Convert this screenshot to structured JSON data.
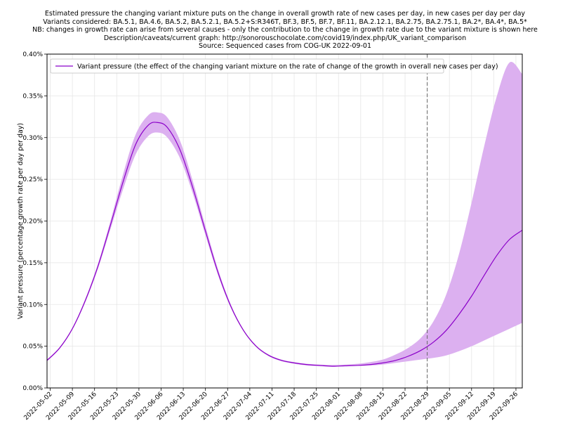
{
  "chart_data": {
    "type": "line",
    "title": [
      "Estimated pressure the changing variant mixture puts on the change in overall growth rate of new cases per day, in new cases per day per day",
      "Variants considered: BA.5.1, BA.4.6, BA.5.2, BA.5.2.1, BA.5.2+S:R346T, BF.3, BF.5, BF.7, BF.11, BA.2.12.1, BA.2.75, BA.2.75.1, BA.2*, BA.4*, BA.5*",
      "NB: changes in growth rate can arise from several causes - only the contribution to the change in growth rate due to the variant mixture is shown here",
      "Description/caveats/current graph: http://sonorouschocolate.com/covid19/index.php/UK_variant_comparison",
      "Source: Sequenced cases from COG-UK 2022-09-01"
    ],
    "xlabel": "",
    "ylabel": "Variant pressure (percentage growth rate per day per day)",
    "x_tick_labels": [
      "2022-05-02",
      "2022-05-09",
      "2022-05-16",
      "2022-05-23",
      "2022-05-30",
      "2022-06-06",
      "2022-06-13",
      "2022-06-20",
      "2022-06-27",
      "2022-07-04",
      "2022-07-11",
      "2022-07-18",
      "2022-07-25",
      "2022-08-01",
      "2022-08-08",
      "2022-08-15",
      "2022-08-22",
      "2022-08-29",
      "2022-09-05",
      "2022-09-12",
      "2022-09-19",
      "2022-09-26"
    ],
    "y_tick_labels": [
      "0.00%",
      "0.05%",
      "0.10%",
      "0.15%",
      "0.20%",
      "0.25%",
      "0.30%",
      "0.35%",
      "0.40%"
    ],
    "xlim": [
      "2022-05-01",
      "2022-09-28"
    ],
    "ylim": [
      0,
      0.4
    ],
    "grid": true,
    "legend_position": "top-left",
    "vline_date": "2022-08-29",
    "series": [
      {
        "name": "Variant pressure (the effect of the changing variant mixture on the rate of change of the growth in overall new cases per day)",
        "color": "#8b00c9",
        "band_color": "#dcb0f0",
        "x": [
          "2022-05-01",
          "2022-05-05",
          "2022-05-09",
          "2022-05-13",
          "2022-05-17",
          "2022-05-21",
          "2022-05-25",
          "2022-05-29",
          "2022-06-02",
          "2022-06-05",
          "2022-06-08",
          "2022-06-12",
          "2022-06-16",
          "2022-06-20",
          "2022-06-24",
          "2022-06-28",
          "2022-07-02",
          "2022-07-06",
          "2022-07-10",
          "2022-07-14",
          "2022-07-18",
          "2022-07-22",
          "2022-07-26",
          "2022-07-30",
          "2022-08-03",
          "2022-08-07",
          "2022-08-11",
          "2022-08-15",
          "2022-08-19",
          "2022-08-23",
          "2022-08-27",
          "2022-08-31",
          "2022-09-04",
          "2022-09-08",
          "2022-09-12",
          "2022-09-16",
          "2022-09-20",
          "2022-09-24",
          "2022-09-28"
        ],
        "y": [
          0.033,
          0.048,
          0.071,
          0.104,
          0.145,
          0.195,
          0.247,
          0.292,
          0.315,
          0.318,
          0.312,
          0.285,
          0.24,
          0.188,
          0.138,
          0.098,
          0.069,
          0.05,
          0.039,
          0.033,
          0.03,
          0.028,
          0.027,
          0.026,
          0.0265,
          0.027,
          0.028,
          0.03,
          0.033,
          0.038,
          0.045,
          0.055,
          0.069,
          0.088,
          0.11,
          0.135,
          0.159,
          0.178,
          0.189
        ],
        "lower": [
          0.032,
          0.047,
          0.07,
          0.102,
          0.142,
          0.19,
          0.238,
          0.28,
          0.302,
          0.306,
          0.3,
          0.275,
          0.233,
          0.183,
          0.135,
          0.096,
          0.068,
          0.049,
          0.038,
          0.032,
          0.029,
          0.027,
          0.026,
          0.0255,
          0.026,
          0.0265,
          0.027,
          0.028,
          0.03,
          0.032,
          0.034,
          0.036,
          0.039,
          0.044,
          0.05,
          0.057,
          0.064,
          0.071,
          0.078
        ],
        "upper": [
          0.034,
          0.049,
          0.072,
          0.106,
          0.148,
          0.2,
          0.256,
          0.304,
          0.327,
          0.33,
          0.324,
          0.296,
          0.248,
          0.194,
          0.142,
          0.1,
          0.07,
          0.051,
          0.04,
          0.034,
          0.031,
          0.029,
          0.028,
          0.0275,
          0.028,
          0.029,
          0.031,
          0.034,
          0.04,
          0.048,
          0.06,
          0.08,
          0.112,
          0.16,
          0.222,
          0.29,
          0.35,
          0.39,
          0.376
        ]
      }
    ]
  }
}
